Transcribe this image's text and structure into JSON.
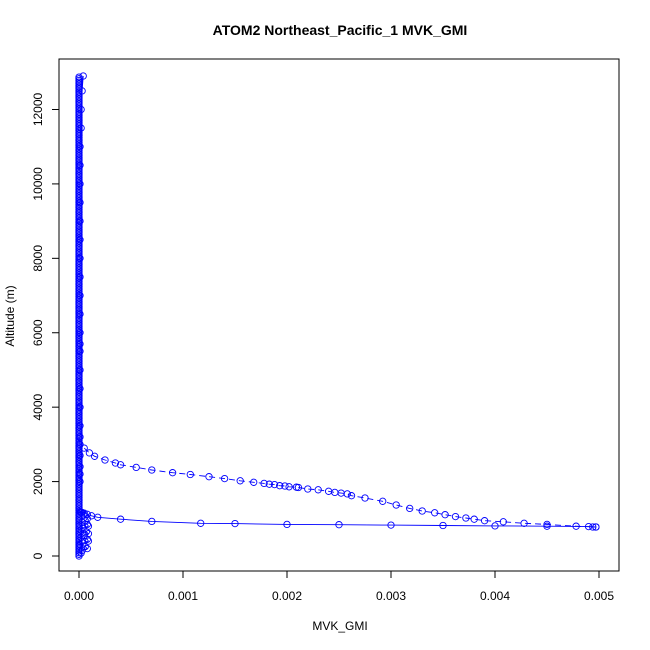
{
  "chart_data": {
    "type": "line",
    "title": "ATOM2 Northeast_Pacific_1 MVK_GMI",
    "xlabel": "MVK_GMI",
    "ylabel": "Altitude (m)",
    "xlim": [
      0,
      0.005
    ],
    "ylim": [
      0,
      12900
    ],
    "xticks": [
      "0.000",
      "0.001",
      "0.002",
      "0.003",
      "0.004",
      "0.005"
    ],
    "yticks": [
      "0",
      "2000",
      "4000",
      "6000",
      "8000",
      "10000",
      "12000"
    ],
    "xtick_values": [
      0,
      0.001,
      0.002,
      0.003,
      0.004,
      0.005
    ],
    "ytick_values": [
      0,
      2000,
      4000,
      6000,
      8000,
      10000,
      12000
    ],
    "grid": false,
    "legend": "none",
    "marker": "open-circle",
    "color": "#0000ff",
    "series": [
      {
        "values_x": [
          4e-05,
          3e-05,
          2e-05,
          2e-05,
          1e-05,
          1e-05,
          1e-05,
          1e-05,
          1e-05,
          1e-05,
          1e-05,
          1e-05,
          1e-05,
          1e-05,
          1e-05,
          1e-05,
          1e-05,
          1e-05,
          1e-05,
          1e-05,
          1e-05,
          1e-05,
          1e-05,
          1e-05,
          1e-05,
          1e-05,
          1e-05
        ],
        "values_y": [
          12900,
          12500,
          12000,
          11500,
          11000,
          10500,
          10000,
          9500,
          9000,
          8500,
          8000,
          7500,
          7000,
          6500,
          6000,
          5700,
          5500,
          5000,
          4500,
          4000,
          3500,
          3200,
          3000,
          2700,
          2400,
          2200,
          2000
        ]
      },
      {
        "values_x": [
          5e-05,
          0.0001,
          0.00015,
          0.00025,
          0.00035,
          0.0004,
          0.00055,
          0.0007,
          0.0009,
          0.00107,
          0.00125,
          0.0014,
          0.00155,
          0.00168,
          0.00178,
          0.00183,
          0.00188,
          0.00193,
          0.00198,
          0.00202,
          0.00209,
          0.00211,
          0.0022,
          0.0023,
          0.0024,
          0.00246,
          0.00252,
          0.00258,
          0.00262,
          0.00275,
          0.00292,
          0.00305,
          0.00318,
          0.0033,
          0.00342,
          0.00352,
          0.00362,
          0.00372,
          0.0038,
          0.0039,
          0.00408,
          0.00428,
          0.0045,
          0.00478,
          0.00497,
          0.00494
        ],
        "values_y": [
          2900,
          2770,
          2680,
          2580,
          2500,
          2450,
          2380,
          2310,
          2240,
          2190,
          2130,
          2080,
          2020,
          1980,
          1950,
          1930,
          1920,
          1890,
          1880,
          1860,
          1850,
          1840,
          1800,
          1780,
          1740,
          1710,
          1690,
          1670,
          1620,
          1560,
          1470,
          1370,
          1280,
          1210,
          1160,
          1110,
          1060,
          1020,
          990,
          950,
          920,
          880,
          850,
          800,
          780,
          780
        ]
      },
      {
        "values_x": [
          0.00497,
          0.0049,
          0.0045,
          0.004,
          0.0035,
          0.003,
          0.0025,
          0.002,
          0.0015,
          0.00117,
          0.0007,
          0.0004,
          0.00018,
          0.00012,
          8e-05,
          5e-05,
          3e-05,
          2e-05,
          1e-05
        ],
        "values_y": [
          780,
          790,
          800,
          810,
          820,
          830,
          840,
          850,
          870,
          880,
          930,
          990,
          1040,
          1080,
          1120,
          1150,
          1170,
          1180,
          1190
        ]
      },
      {
        "values_x": [
          1e-05,
          5e-05,
          8e-05,
          6e-05,
          3e-05,
          8e-05,
          9e-05,
          4e-05,
          2e-05,
          7e-05,
          9e-05,
          5e-05,
          2e-05,
          8e-05,
          9e-05,
          4e-05,
          1e-05,
          6e-05,
          8e-05,
          3e-05,
          2e-05
        ],
        "values_y": [
          1190,
          1100,
          1000,
          950,
          900,
          850,
          800,
          750,
          700,
          650,
          600,
          550,
          500,
          450,
          400,
          350,
          300,
          250,
          200,
          150,
          80
        ]
      }
    ]
  }
}
